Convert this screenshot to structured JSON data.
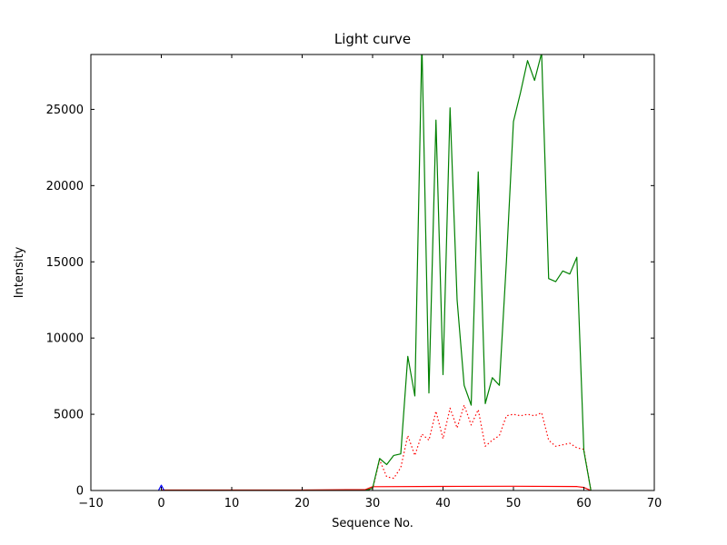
{
  "chart_data": {
    "type": "line",
    "title": "Light curve",
    "xlabel": "Sequence No.",
    "ylabel": "Intensity",
    "xlim": [
      -10,
      70
    ],
    "ylim": [
      0,
      28600
    ],
    "grid": false,
    "legend": "none",
    "background_color": "#ffffff",
    "axis_color": "#000000",
    "xtick_values": [
      -10,
      0,
      10,
      20,
      30,
      40,
      50,
      60,
      70
    ],
    "xtick_labels": [
      "−10",
      "0",
      "10",
      "20",
      "30",
      "40",
      "50",
      "60",
      "70"
    ],
    "ytick_values": [
      0,
      5000,
      10000,
      15000,
      20000,
      25000
    ],
    "ytick_labels": [
      "0",
      "5000",
      "10000",
      "15000",
      "20000",
      "25000"
    ],
    "series": [
      {
        "name": "red-solid-line",
        "color": "#ff0000",
        "style": "solid",
        "x": [
          0,
          10,
          20,
          29,
          30,
          40,
          50,
          59,
          60,
          61
        ],
        "y": [
          30,
          30,
          30,
          60,
          250,
          270,
          280,
          260,
          200,
          0
        ]
      },
      {
        "name": "red-dotted-line",
        "color": "#ff0000",
        "style": "dotted",
        "x": [
          0,
          10,
          20,
          28,
          29,
          30,
          31,
          32,
          33,
          34,
          35,
          36,
          37,
          38,
          39,
          40,
          41,
          42,
          43,
          44,
          45,
          46,
          47,
          48,
          49,
          50,
          51,
          52,
          53,
          54,
          55,
          56,
          57,
          58,
          59,
          60,
          61
        ],
        "y": [
          0,
          0,
          0,
          0,
          0,
          100,
          2000,
          900,
          800,
          1500,
          3600,
          2300,
          3700,
          3300,
          5200,
          3400,
          5400,
          4100,
          5600,
          4300,
          5300,
          2900,
          3300,
          3600,
          4900,
          5000,
          4900,
          5000,
          4900,
          5100,
          3300,
          2900,
          3000,
          3100,
          2800,
          2700,
          0
        ]
      },
      {
        "name": "green-line",
        "color": "#008000",
        "style": "solid",
        "x": [
          0,
          5,
          10,
          15,
          20,
          25,
          28,
          29,
          30,
          31,
          32,
          33,
          34,
          35,
          36,
          37,
          38,
          39,
          40,
          41,
          42,
          43,
          44,
          45,
          46,
          47,
          48,
          49,
          50,
          51,
          52,
          53,
          54,
          55,
          56,
          57,
          58,
          59,
          60,
          61
        ],
        "y": [
          0,
          0,
          0,
          0,
          0,
          0,
          0,
          0,
          150,
          2100,
          1700,
          2300,
          2400,
          8800,
          6200,
          29400,
          6400,
          24300,
          7600,
          25100,
          12500,
          6900,
          5600,
          20900,
          5700,
          7400,
          6900,
          15000,
          24200,
          26100,
          28200,
          26900,
          28700,
          13900,
          13700,
          14400,
          14200,
          15300,
          2600,
          0
        ]
      },
      {
        "name": "blue-marker-line",
        "color": "#0000ff",
        "style": "solid",
        "x": [
          -0.4,
          0,
          0.4
        ],
        "y": [
          0,
          350,
          0
        ]
      }
    ]
  }
}
